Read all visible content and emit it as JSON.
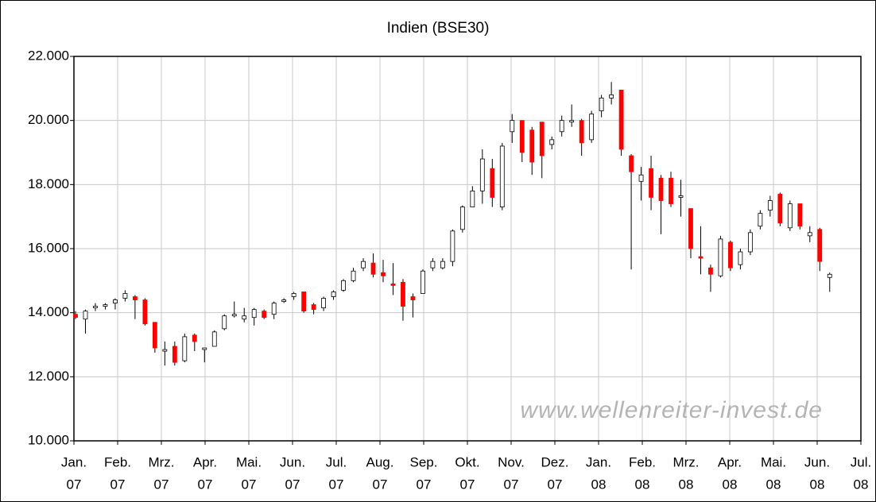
{
  "chart_data": {
    "type": "candlestick",
    "title": "Indien (BSE30)",
    "annotation": "www.wellenreiter-invest.de",
    "ylim": [
      10000,
      22000
    ],
    "yticks": [
      {
        "value": 10000,
        "label": "10.000"
      },
      {
        "value": 12000,
        "label": "12.000"
      },
      {
        "value": 14000,
        "label": "14.000"
      },
      {
        "value": 16000,
        "label": "16.000"
      },
      {
        "value": 18000,
        "label": "18.000"
      },
      {
        "value": 20000,
        "label": "20.000"
      },
      {
        "value": 22000,
        "label": "22.000"
      }
    ],
    "xticks": [
      [
        "Jan.",
        "07"
      ],
      [
        "Feb.",
        "07"
      ],
      [
        "Mrz.",
        "07"
      ],
      [
        "Apr.",
        "07"
      ],
      [
        "Mai.",
        "07"
      ],
      [
        "Jun.",
        "07"
      ],
      [
        "Jul.",
        "07"
      ],
      [
        "Aug.",
        "07"
      ],
      [
        "Sep.",
        "07"
      ],
      [
        "Okt.",
        "07"
      ],
      [
        "Nov.",
        "07"
      ],
      [
        "Dez.",
        "07"
      ],
      [
        "Jan.",
        "08"
      ],
      [
        "Feb.",
        "08"
      ],
      [
        "Mrz.",
        "08"
      ],
      [
        "Apr.",
        "08"
      ],
      [
        "Mai.",
        "08"
      ],
      [
        "Jun.",
        "08"
      ],
      [
        "Jul.",
        "08"
      ]
    ],
    "grid": true,
    "up_color": "#ffffff",
    "down_color": "#ff0000",
    "candles": [
      {
        "open": 13950,
        "high": 14050,
        "low": 13800,
        "close": 13850
      },
      {
        "open": 13800,
        "high": 14100,
        "low": 13350,
        "close": 14050
      },
      {
        "open": 14150,
        "high": 14300,
        "low": 14050,
        "close": 14200
      },
      {
        "open": 14200,
        "high": 14300,
        "low": 14100,
        "close": 14250
      },
      {
        "open": 14300,
        "high": 14450,
        "low": 14100,
        "close": 14400
      },
      {
        "open": 14450,
        "high": 14700,
        "low": 14350,
        "close": 14600
      },
      {
        "open": 14500,
        "high": 14550,
        "low": 13800,
        "close": 14400
      },
      {
        "open": 14400,
        "high": 14450,
        "low": 13600,
        "close": 13650
      },
      {
        "open": 13700,
        "high": 13700,
        "low": 12750,
        "close": 12900
      },
      {
        "open": 12800,
        "high": 13100,
        "low": 12350,
        "close": 12850
      },
      {
        "open": 12950,
        "high": 13100,
        "low": 12350,
        "close": 12450
      },
      {
        "open": 12500,
        "high": 13350,
        "low": 12450,
        "close": 13250
      },
      {
        "open": 13300,
        "high": 13350,
        "low": 12800,
        "close": 13100
      },
      {
        "open": 12850,
        "high": 12900,
        "low": 12450,
        "close": 12900
      },
      {
        "open": 12950,
        "high": 13450,
        "low": 12950,
        "close": 13400
      },
      {
        "open": 13500,
        "high": 13950,
        "low": 13450,
        "close": 13900
      },
      {
        "open": 13900,
        "high": 14350,
        "low": 13850,
        "close": 13950
      },
      {
        "open": 13800,
        "high": 14150,
        "low": 13700,
        "close": 13900
      },
      {
        "open": 13850,
        "high": 14150,
        "low": 13600,
        "close": 14100
      },
      {
        "open": 14050,
        "high": 14100,
        "low": 13800,
        "close": 13850
      },
      {
        "open": 13950,
        "high": 14350,
        "low": 13800,
        "close": 14300
      },
      {
        "open": 14350,
        "high": 14450,
        "low": 14300,
        "close": 14400
      },
      {
        "open": 14500,
        "high": 14650,
        "low": 14400,
        "close": 14600
      },
      {
        "open": 14650,
        "high": 14650,
        "low": 14000,
        "close": 14050
      },
      {
        "open": 14250,
        "high": 14300,
        "low": 13950,
        "close": 14100
      },
      {
        "open": 14150,
        "high": 14500,
        "low": 14050,
        "close": 14450
      },
      {
        "open": 14500,
        "high": 14700,
        "low": 14400,
        "close": 14650
      },
      {
        "open": 14700,
        "high": 15050,
        "low": 14650,
        "close": 15000
      },
      {
        "open": 15000,
        "high": 15400,
        "low": 14950,
        "close": 15300
      },
      {
        "open": 15400,
        "high": 15700,
        "low": 15300,
        "close": 15600
      },
      {
        "open": 15550,
        "high": 15850,
        "low": 15100,
        "close": 15200
      },
      {
        "open": 15250,
        "high": 15650,
        "low": 14950,
        "close": 15150
      },
      {
        "open": 14900,
        "high": 15550,
        "low": 14550,
        "close": 14850
      },
      {
        "open": 14950,
        "high": 15050,
        "low": 13750,
        "close": 14200
      },
      {
        "open": 14500,
        "high": 14600,
        "low": 13850,
        "close": 14400
      },
      {
        "open": 14600,
        "high": 15350,
        "low": 14600,
        "close": 15300
      },
      {
        "open": 15400,
        "high": 15700,
        "low": 15300,
        "close": 15600
      },
      {
        "open": 15400,
        "high": 15700,
        "low": 15350,
        "close": 15600
      },
      {
        "open": 15600,
        "high": 16600,
        "low": 15450,
        "close": 16550
      },
      {
        "open": 16600,
        "high": 17350,
        "low": 16500,
        "close": 17300
      },
      {
        "open": 17300,
        "high": 17950,
        "low": 17300,
        "close": 17800
      },
      {
        "open": 17800,
        "high": 19100,
        "low": 17400,
        "close": 18800
      },
      {
        "open": 18500,
        "high": 18800,
        "low": 17300,
        "close": 17600
      },
      {
        "open": 17300,
        "high": 19300,
        "low": 17200,
        "close": 19200
      },
      {
        "open": 19650,
        "high": 20200,
        "low": 19300,
        "close": 20000
      },
      {
        "open": 20000,
        "high": 20000,
        "low": 18700,
        "close": 19000
      },
      {
        "open": 19700,
        "high": 19800,
        "low": 18300,
        "close": 18700
      },
      {
        "open": 19950,
        "high": 19950,
        "low": 18200,
        "close": 18900
      },
      {
        "open": 19250,
        "high": 19500,
        "low": 19100,
        "close": 19400
      },
      {
        "open": 19650,
        "high": 20150,
        "low": 19500,
        "close": 20000
      },
      {
        "open": 19950,
        "high": 20500,
        "low": 19800,
        "close": 20000
      },
      {
        "open": 20000,
        "high": 20050,
        "low": 18900,
        "close": 19300
      },
      {
        "open": 19400,
        "high": 20300,
        "low": 19300,
        "close": 20200
      },
      {
        "open": 20300,
        "high": 20800,
        "low": 20100,
        "close": 20700
      },
      {
        "open": 20700,
        "high": 21200,
        "low": 20500,
        "close": 20800
      },
      {
        "open": 20950,
        "high": 20950,
        "low": 18900,
        "close": 19100
      },
      {
        "open": 18900,
        "high": 18950,
        "low": 15350,
        "close": 18400
      },
      {
        "open": 18100,
        "high": 18550,
        "low": 17500,
        "close": 18300
      },
      {
        "open": 18500,
        "high": 18900,
        "low": 17200,
        "close": 17600
      },
      {
        "open": 18200,
        "high": 18300,
        "low": 16450,
        "close": 17500
      },
      {
        "open": 18200,
        "high": 18400,
        "low": 17300,
        "close": 17400
      },
      {
        "open": 17600,
        "high": 18150,
        "low": 17000,
        "close": 17650
      },
      {
        "open": 17250,
        "high": 17250,
        "low": 15700,
        "close": 16000
      },
      {
        "open": 15750,
        "high": 16700,
        "low": 15200,
        "close": 15700
      },
      {
        "open": 15400,
        "high": 15500,
        "low": 14650,
        "close": 15200
      },
      {
        "open": 15150,
        "high": 16400,
        "low": 15100,
        "close": 16300
      },
      {
        "open": 16200,
        "high": 16250,
        "low": 15300,
        "close": 15400
      },
      {
        "open": 15500,
        "high": 16000,
        "low": 15350,
        "close": 15900
      },
      {
        "open": 15900,
        "high": 16600,
        "low": 15800,
        "close": 16500
      },
      {
        "open": 16700,
        "high": 17200,
        "low": 16600,
        "close": 17100
      },
      {
        "open": 17200,
        "high": 17650,
        "low": 17000,
        "close": 17500
      },
      {
        "open": 17700,
        "high": 17750,
        "low": 16700,
        "close": 16800
      },
      {
        "open": 16650,
        "high": 17500,
        "low": 16550,
        "close": 17400
      },
      {
        "open": 17400,
        "high": 17400,
        "low": 16600,
        "close": 16700
      },
      {
        "open": 16400,
        "high": 16700,
        "low": 16200,
        "close": 16500
      },
      {
        "open": 16600,
        "high": 16650,
        "low": 15300,
        "close": 15600
      },
      {
        "open": 15100,
        "high": 15250,
        "low": 14650,
        "close": 15200
      }
    ]
  }
}
